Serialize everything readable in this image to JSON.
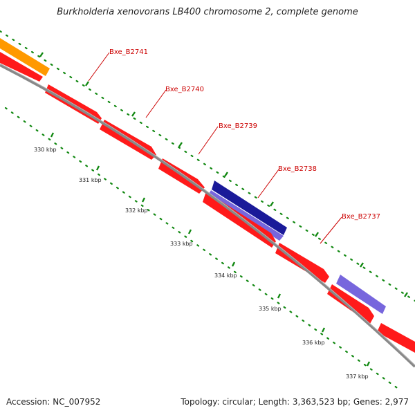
{
  "title": "Burkholderia xenovorans LB400 chromosome 2, complete genome",
  "accession": "Accession: NC_007952",
  "topology": "Topology: circular; Length: 3,363,523 bp; Genes: 2,977",
  "colors": {
    "backbone": "#8a8a8a",
    "forward_cds": "#ff1a1a",
    "orange_feature": "#ff9900",
    "navy_feature": "#1a1a99",
    "purple_feature": "#7766dd",
    "tick": "#118811",
    "label": "#cc0000"
  },
  "gene_labels": [
    "Bxe_B2741",
    "Bxe_B2740",
    "Bxe_B2739",
    "Bxe_B2738",
    "Bxe_B2737"
  ],
  "scale_labels": [
    "330 kbp",
    "331 kbp",
    "332 kbp",
    "333 kbp",
    "334 kbp",
    "335 kbp",
    "336 kbp",
    "337 kbp"
  ]
}
